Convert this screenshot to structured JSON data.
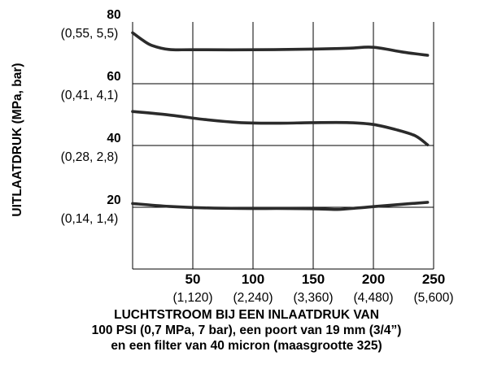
{
  "chart_data": {
    "type": "line",
    "xlabel_lines": [
      "LUCHTSTROOM BIJ EEN INLAATDRUK VAN",
      "100 PSI (0,7 MPa, 7 bar), een poort van 19 mm (3/4”)",
      "en een filter van 40 micron (maasgrootte 325)"
    ],
    "ylabel": "UITLAATDRUK (MPa, bar)",
    "xlim": [
      0,
      250
    ],
    "ylim": [
      0,
      80
    ],
    "x_ticks": [
      {
        "value": 50,
        "label": "50",
        "sublabel": "(1,120)"
      },
      {
        "value": 100,
        "label": "100",
        "sublabel": "(2,240)"
      },
      {
        "value": 150,
        "label": "150",
        "sublabel": "(3,360)"
      },
      {
        "value": 200,
        "label": "200",
        "sublabel": "(4,480)"
      },
      {
        "value": 250,
        "label": "250",
        "sublabel": "(5,600)"
      }
    ],
    "y_ticks": [
      {
        "value": 20,
        "label": "20",
        "sublabel": "(0,14, 1,4)"
      },
      {
        "value": 40,
        "label": "40",
        "sublabel": "(0,28, 2,8)"
      },
      {
        "value": 60,
        "label": "60",
        "sublabel": "(0,41, 4,1)"
      },
      {
        "value": 80,
        "label": "80",
        "sublabel": "(0,55, 5,5)"
      }
    ],
    "grid": true,
    "series": [
      {
        "values": [
          [
            0,
            76.5
          ],
          [
            8,
            74.2
          ],
          [
            16,
            72.4
          ],
          [
            30,
            71.1
          ],
          [
            50,
            71.0
          ],
          [
            100,
            71.0
          ],
          [
            150,
            71.2
          ],
          [
            180,
            71.5
          ],
          [
            200,
            71.8
          ],
          [
            225,
            70.2
          ],
          [
            245,
            69.2
          ]
        ]
      },
      {
        "values": [
          [
            0,
            51.0
          ],
          [
            30,
            49.9
          ],
          [
            60,
            48.4
          ],
          [
            90,
            47.4
          ],
          [
            120,
            47.2
          ],
          [
            150,
            47.4
          ],
          [
            180,
            47.4
          ],
          [
            200,
            46.8
          ],
          [
            220,
            45.0
          ],
          [
            235,
            43.1
          ],
          [
            245,
            40.2
          ]
        ]
      },
      {
        "values": [
          [
            0,
            21.2
          ],
          [
            30,
            20.3
          ],
          [
            60,
            19.8
          ],
          [
            90,
            19.6
          ],
          [
            120,
            19.6
          ],
          [
            150,
            19.5
          ],
          [
            170,
            19.3
          ],
          [
            185,
            19.7
          ],
          [
            200,
            20.2
          ],
          [
            225,
            21.0
          ],
          [
            245,
            21.6
          ]
        ]
      }
    ],
    "colors": {
      "line": "#2b2b2b",
      "grid": "#000000"
    }
  }
}
